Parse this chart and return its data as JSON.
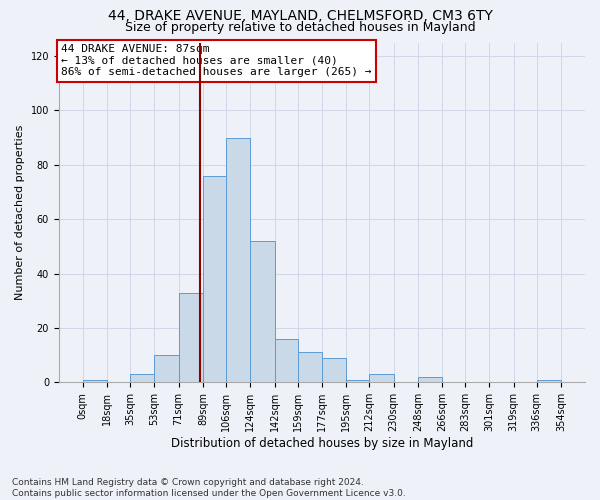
{
  "title1": "44, DRAKE AVENUE, MAYLAND, CHELMSFORD, CM3 6TY",
  "title2": "Size of property relative to detached houses in Mayland",
  "xlabel": "Distribution of detached houses by size in Mayland",
  "ylabel": "Number of detached properties",
  "bar_color": "#c9d9e8",
  "bar_edge_color": "#5b9bd5",
  "bin_edges": [
    0,
    18,
    35,
    53,
    71,
    89,
    106,
    124,
    142,
    159,
    177,
    195,
    212,
    230,
    248,
    266,
    283,
    301,
    319,
    336,
    354
  ],
  "bar_heights": [
    1,
    0,
    3,
    10,
    33,
    76,
    90,
    52,
    16,
    11,
    9,
    1,
    3,
    0,
    2,
    0,
    0,
    0,
    0,
    1
  ],
  "tick_labels": [
    "0sqm",
    "18sqm",
    "35sqm",
    "53sqm",
    "71sqm",
    "89sqm",
    "106sqm",
    "124sqm",
    "142sqm",
    "159sqm",
    "177sqm",
    "195sqm",
    "212sqm",
    "230sqm",
    "248sqm",
    "266sqm",
    "283sqm",
    "301sqm",
    "319sqm",
    "336sqm",
    "354sqm"
  ],
  "property_size": 87,
  "vline_color": "#8b0000",
  "annotation_line1": "44 DRAKE AVENUE: 87sqm",
  "annotation_line2": "← 13% of detached houses are smaller (40)",
  "annotation_line3": "86% of semi-detached houses are larger (265) →",
  "annotation_box_color": "#ffffff",
  "annotation_box_edge": "#cc0000",
  "ylim": [
    0,
    125
  ],
  "yticks": [
    0,
    20,
    40,
    60,
    80,
    100,
    120
  ],
  "grid_color": "#d0d8e8",
  "bg_color": "#eef2f8",
  "footnote": "Contains HM Land Registry data © Crown copyright and database right 2024.\nContains public sector information licensed under the Open Government Licence v3.0.",
  "title1_fontsize": 10,
  "title2_fontsize": 9,
  "xlabel_fontsize": 8.5,
  "ylabel_fontsize": 8,
  "tick_fontsize": 7,
  "annotation_fontsize": 8,
  "footnote_fontsize": 6.5
}
